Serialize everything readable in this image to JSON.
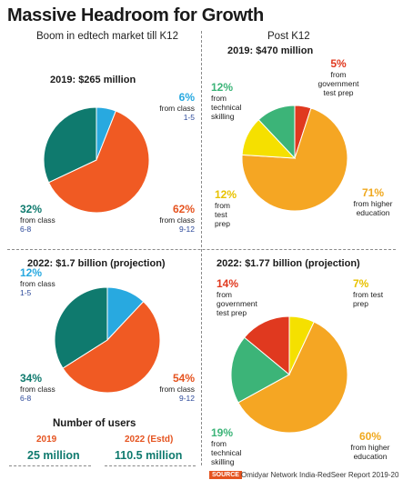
{
  "title": "Massive Headroom for Growth",
  "k12_heading": "Boom in edtech market till K12",
  "postk12_heading": "Post K12",
  "chart_data": [
    {
      "type": "pie",
      "title": "2019: $265 million",
      "slices": [
        {
          "pct_label": "6%",
          "value": 6,
          "color": "#28a9e0",
          "desc": "from class",
          "range": "1-5"
        },
        {
          "pct_label": "62%",
          "value": 62,
          "color": "#f05a23",
          "desc": "from class",
          "range": "9-12"
        },
        {
          "pct_label": "32%",
          "value": 32,
          "color": "#0f7a6e",
          "desc": "from class",
          "range": "6-8"
        }
      ]
    },
    {
      "type": "pie",
      "title": "2022: $1.7 billion (projection)",
      "slices": [
        {
          "pct_label": "12%",
          "value": 12,
          "color": "#28a9e0",
          "desc": "from class",
          "range": "1-5"
        },
        {
          "pct_label": "54%",
          "value": 54,
          "color": "#f05a23",
          "desc": "from class",
          "range": "9-12"
        },
        {
          "pct_label": "34%",
          "value": 34,
          "color": "#0f7a6e",
          "desc": "from class",
          "range": "6-8"
        }
      ]
    },
    {
      "type": "pie",
      "title": "2019: $470 million",
      "slices": [
        {
          "pct_label": "5%",
          "value": 5,
          "color": "#e0391f",
          "desc": "from government test prep"
        },
        {
          "pct_label": "71%",
          "value": 71,
          "color": "#f5a623",
          "desc": "from higher education"
        },
        {
          "pct_label": "12%",
          "value": 12,
          "color": "#f5e000",
          "desc": "from test prep"
        },
        {
          "pct_label": "12%",
          "value": 12,
          "color": "#3cb478",
          "desc": "from technical skilling"
        }
      ]
    },
    {
      "type": "pie",
      "title": "2022: $1.77 billion (projection)",
      "slices": [
        {
          "pct_label": "7%",
          "value": 7,
          "color": "#f5e000",
          "desc": "from test prep"
        },
        {
          "pct_label": "60%",
          "value": 60,
          "color": "#f5a623",
          "desc": "from higher education"
        },
        {
          "pct_label": "19%",
          "value": 19,
          "color": "#3cb478",
          "desc": "from technical skilling"
        },
        {
          "pct_label": "14%",
          "value": 14,
          "color": "#e0391f",
          "desc": "from government test prep"
        }
      ]
    }
  ],
  "users": {
    "heading": "Number of users",
    "col1_label": "2019",
    "col1_value": "25 million",
    "col2_label": "2022 (Estd)",
    "col2_value": "110.5  million"
  },
  "source": {
    "tag": "SOURCE",
    "text": "Omidyar Network India-RedSeer Report 2019-20"
  }
}
